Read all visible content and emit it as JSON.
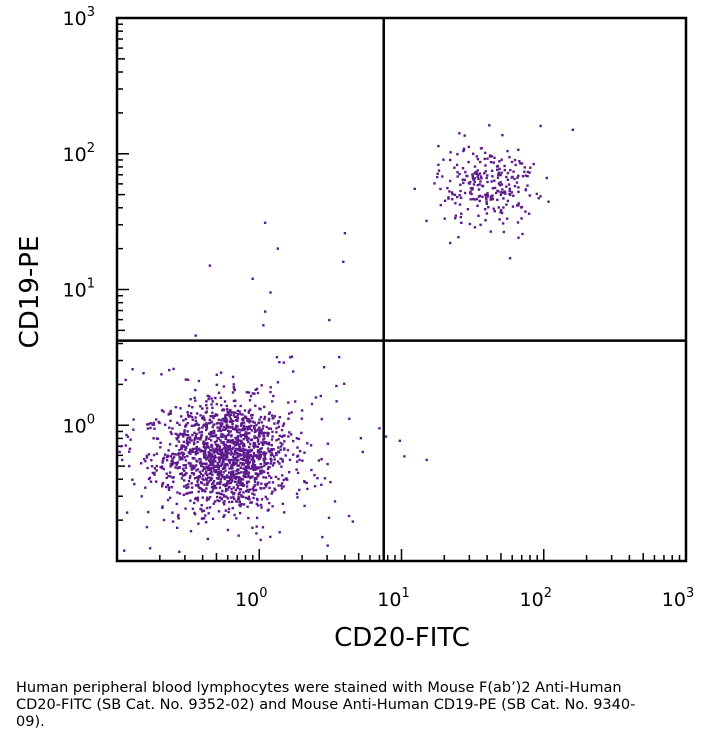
{
  "chart_data": {
    "type": "scatter",
    "xlabel": "CD20-FITC",
    "ylabel": "CD19-PE",
    "x_scale": "log",
    "y_scale": "log",
    "xlim": [
      0.1,
      1000
    ],
    "ylim": [
      0.1,
      1000
    ],
    "x_ticks": [
      {
        "base": "10",
        "exp": "0",
        "value": 1
      },
      {
        "base": "10",
        "exp": "1",
        "value": 10
      },
      {
        "base": "10",
        "exp": "2",
        "value": 100
      },
      {
        "base": "10",
        "exp": "3",
        "value": 1000
      }
    ],
    "y_ticks": [
      {
        "base": "10",
        "exp": "0",
        "value": 1
      },
      {
        "base": "10",
        "exp": "1",
        "value": 10
      },
      {
        "base": "10",
        "exp": "2",
        "value": 100
      },
      {
        "base": "10",
        "exp": "3",
        "value": 1000
      }
    ],
    "quadrant_gates": {
      "x": 7.5,
      "y": 4.2
    },
    "grid": false,
    "point_color": "#5c1a8c",
    "populations": [
      {
        "center": [
          0.6,
          0.6
        ],
        "spread_log10": [
          0.22,
          0.2
        ],
        "count": 1400
      },
      {
        "center": [
          0.55,
          0.6
        ],
        "spread_log10": [
          0.5,
          0.4
        ],
        "count": 250
      },
      {
        "center": [
          40,
          60
        ],
        "spread_log10": [
          0.17,
          0.15
        ],
        "count": 260
      }
    ],
    "points": [
      [
        0.45,
        15
      ],
      [
        1.1,
        31
      ],
      [
        0.9,
        12
      ],
      [
        1.35,
        20
      ],
      [
        1.2,
        9.5
      ],
      [
        4.0,
        26
      ],
      [
        3.9,
        16
      ],
      [
        3.5,
        1.5
      ],
      [
        7.0,
        0.95
      ],
      [
        0.25,
        2.6
      ],
      [
        1.7,
        3.2
      ],
      [
        2.5,
        1.6
      ],
      [
        95,
        160
      ],
      [
        160,
        150
      ],
      [
        58,
        17
      ],
      [
        15,
        32
      ],
      [
        22,
        22
      ],
      [
        22,
        90
      ]
    ]
  },
  "caption": "Human peripheral blood lymphocytes were stained with Mouse F(ab’)2 Anti-Human CD20-FITC (SB Cat. No. 9352-02) and Mouse Anti-Human CD19-PE (SB Cat. No. 9340-09)."
}
